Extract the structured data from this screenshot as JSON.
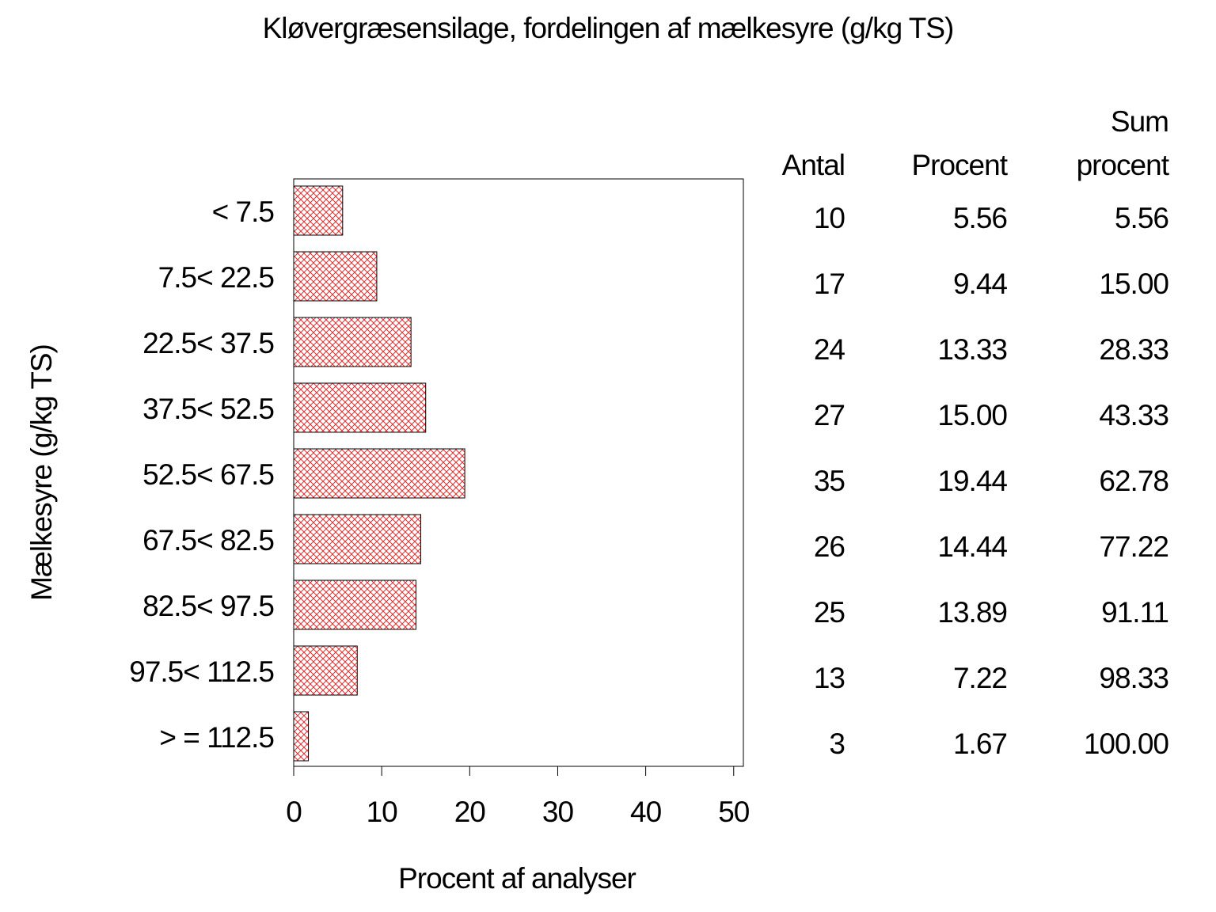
{
  "chart_data": {
    "type": "bar",
    "orientation": "horizontal",
    "title": "Kløvergræsensilage, fordelingen af mælkesyre (g/kg TS)",
    "x_label": "Procent af analyser",
    "y_label": "Mælkesyre (g/kg TS)",
    "categories": [
      "< 7.5",
      "7.5< 22.5",
      "22.5< 37.5",
      "37.5< 52.5",
      "52.5< 67.5",
      "67.5< 82.5",
      "82.5< 97.5",
      "97.5< 112.5",
      "> = 112.5"
    ],
    "values": [
      5.56,
      9.44,
      13.33,
      15.0,
      19.44,
      14.44,
      13.89,
      7.22,
      1.67
    ],
    "value_labels": [
      "5.56",
      "9.44",
      "13.33",
      "15.00",
      "19.44",
      "14.44",
      "13.89",
      "7.22",
      "1.67"
    ],
    "color": "#e03030",
    "xlim": [
      0,
      51.1
    ],
    "xticks": [
      0,
      10,
      20,
      30,
      40,
      50
    ],
    "table": {
      "count_header": "Antal",
      "percent_header": "Procent",
      "cumulative_header": [
        "Sum",
        "procent"
      ],
      "counts": [
        10,
        17,
        24,
        27,
        35,
        26,
        25,
        13,
        3
      ],
      "cumulative": [
        5.56,
        15.0,
        28.33,
        43.33,
        62.78,
        77.22,
        91.11,
        98.33,
        100.0
      ],
      "cumulative_labels": [
        "5.56",
        "15.00",
        "28.33",
        "43.33",
        "62.78",
        "77.22",
        "91.11",
        "98.33",
        "100.00"
      ]
    }
  }
}
